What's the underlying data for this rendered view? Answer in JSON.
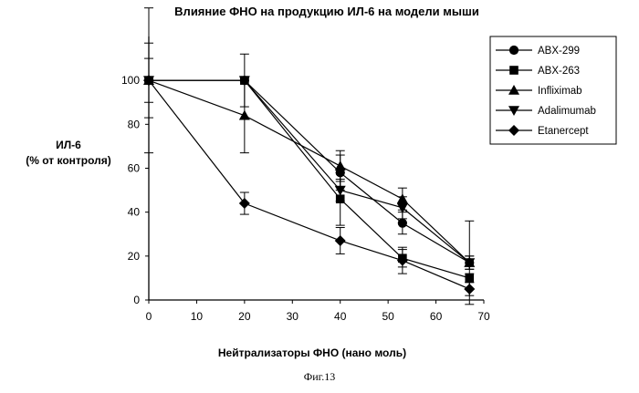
{
  "chart_data": {
    "type": "line",
    "title": "Влияние ФНО на продукцию ИЛ-6 на модели мыши",
    "xlabel": "Нейтрализаторы ФНО (нано моль)",
    "ylabel": [
      "ИЛ-6",
      "(% от контроля)"
    ],
    "xlim": [
      0,
      70
    ],
    "ylim": [
      0,
      120
    ],
    "xticks": [
      0,
      10,
      20,
      30,
      40,
      50,
      60,
      70
    ],
    "yticks": [
      0,
      20,
      40,
      60,
      80,
      100
    ],
    "grid": false,
    "legend_position": "right",
    "series": [
      {
        "name": "ABX-299",
        "marker": "circle",
        "x": [
          0,
          20,
          40,
          53,
          67
        ],
        "y": [
          100,
          100,
          58,
          35,
          17
        ],
        "err": [
          0,
          0,
          8,
          5,
          3
        ]
      },
      {
        "name": "ABX-263",
        "marker": "square",
        "x": [
          0,
          20,
          40,
          53,
          67
        ],
        "y": [
          100,
          100,
          46,
          19,
          10
        ],
        "err": [
          0,
          0,
          12,
          4,
          2
        ]
      },
      {
        "name": "Infliximab",
        "marker": "triangle-up",
        "x": [
          0,
          20,
          40,
          53,
          67
        ],
        "y": [
          100,
          84,
          61,
          46,
          17
        ],
        "err": [
          33,
          17,
          7,
          5,
          3
        ]
      },
      {
        "name": "Adalimumab",
        "marker": "triangle-down",
        "x": [
          0,
          20,
          40,
          53,
          67
        ],
        "y": [
          100,
          100,
          50,
          42,
          17
        ],
        "err": [
          17,
          12,
          5,
          5,
          19
        ]
      },
      {
        "name": "Etanercept",
        "marker": "diamond",
        "x": [
          0,
          20,
          40,
          53,
          67
        ],
        "y": [
          100,
          44,
          27,
          18,
          5
        ],
        "err": [
          10,
          5,
          6,
          6,
          3
        ]
      }
    ]
  },
  "caption": "Фиг.13"
}
